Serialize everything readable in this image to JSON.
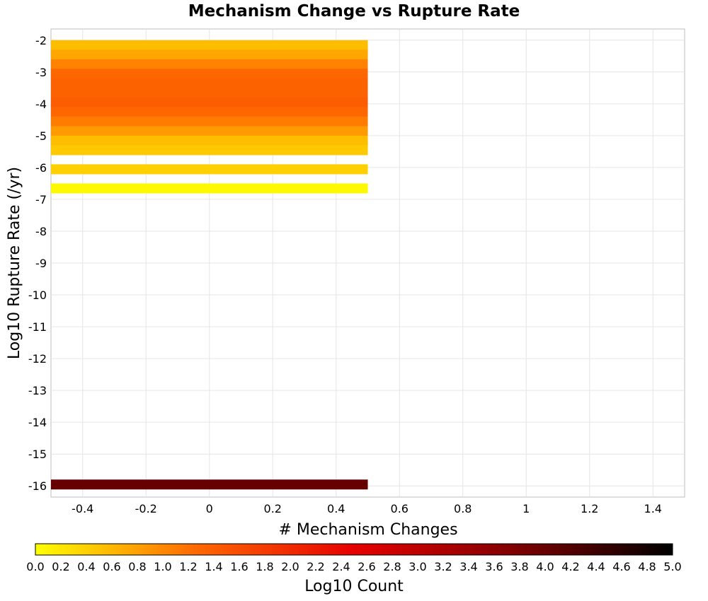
{
  "chart_data": {
    "type": "heatmap",
    "title": "Mechanism Change vs Rupture Rate",
    "xlabel": "# Mechanism Changes",
    "ylabel": "Log10 Rupture Rate (/yr)",
    "xlim": [
      -0.5,
      1.5
    ],
    "ylim": [
      -16.35,
      -1.65
    ],
    "x_ticks": [
      "-0.4",
      "-0.2",
      "0",
      "0.2",
      "0.4",
      "0.6",
      "0.8",
      "1",
      "1.2",
      "1.4"
    ],
    "x_tick_values": [
      -0.4,
      -0.2,
      0,
      0.2,
      0.4,
      0.6,
      0.8,
      1,
      1.2,
      1.4
    ],
    "y_ticks": [
      "-2",
      "-3",
      "-4",
      "-5",
      "-6",
      "-7",
      "-8",
      "-9",
      "-10",
      "-11",
      "-12",
      "-13",
      "-14",
      "-15",
      "-16"
    ],
    "y_tick_values": [
      -2,
      -3,
      -4,
      -5,
      -6,
      -7,
      -8,
      -9,
      -10,
      -11,
      -12,
      -13,
      -14,
      -15,
      -16
    ],
    "grid": true,
    "colorbar": {
      "label": "Log10 Count",
      "range": [
        0.0,
        5.0
      ],
      "ticks": [
        "0.0",
        "0.2",
        "0.4",
        "0.6",
        "0.8",
        "1.0",
        "1.2",
        "1.4",
        "1.6",
        "1.8",
        "2.0",
        "2.2",
        "2.4",
        "2.6",
        "2.8",
        "3.0",
        "3.2",
        "3.4",
        "3.6",
        "3.8",
        "4.0",
        "4.2",
        "4.4",
        "4.6",
        "4.8",
        "5.0"
      ],
      "placement": "bottom",
      "colors": [
        "#ffff00",
        "#ff6a00",
        "#e60000",
        "#800000",
        "#000000"
      ]
    },
    "cells": [
      {
        "x": 0,
        "y": -2.15,
        "log10_count": 0.55
      },
      {
        "x": 0,
        "y": -2.45,
        "log10_count": 0.75
      },
      {
        "x": 0,
        "y": -2.75,
        "log10_count": 1.05
      },
      {
        "x": 0,
        "y": -3.05,
        "log10_count": 1.3
      },
      {
        "x": 0,
        "y": -3.35,
        "log10_count": 1.35
      },
      {
        "x": 0,
        "y": -3.65,
        "log10_count": 1.35
      },
      {
        "x": 0,
        "y": -3.95,
        "log10_count": 1.4
      },
      {
        "x": 0,
        "y": -4.25,
        "log10_count": 1.3
      },
      {
        "x": 0,
        "y": -4.55,
        "log10_count": 1.1
      },
      {
        "x": 0,
        "y": -4.85,
        "log10_count": 0.85
      },
      {
        "x": 0,
        "y": -5.15,
        "log10_count": 0.55
      },
      {
        "x": 0,
        "y": -5.45,
        "log10_count": 0.45
      },
      {
        "x": 0,
        "y": -6.05,
        "log10_count": 0.4
      },
      {
        "x": 0,
        "y": -6.65,
        "log10_count": 0.05
      },
      {
        "x": 0,
        "y": -15.95,
        "log10_count": 4.0
      }
    ]
  }
}
